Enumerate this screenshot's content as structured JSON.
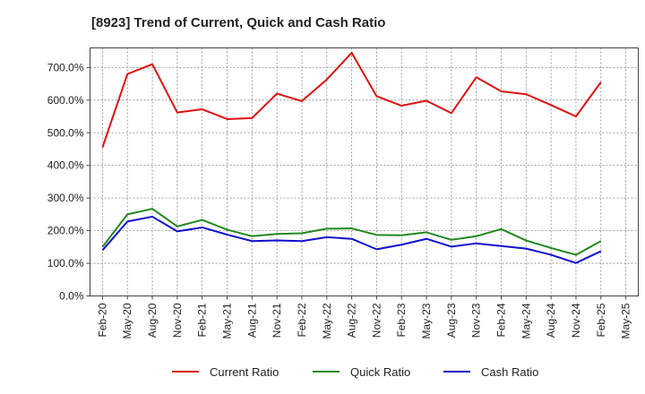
{
  "chart_data": {
    "type": "line",
    "title": "[8923]  Trend of Current, Quick and Cash Ratio",
    "xlabel": "",
    "ylabel": "",
    "ylim": [
      0,
      760
    ],
    "y_ticks": [
      0,
      100,
      200,
      300,
      400,
      500,
      600,
      700
    ],
    "y_tick_labels": [
      "0.0%",
      "100.0%",
      "200.0%",
      "300.0%",
      "400.0%",
      "500.0%",
      "600.0%",
      "700.0%"
    ],
    "categories": [
      "Feb-20",
      "May-20",
      "Aug-20",
      "Nov-20",
      "Feb-21",
      "May-21",
      "Aug-21",
      "Nov-21",
      "Feb-22",
      "May-22",
      "Aug-22",
      "Nov-22",
      "Feb-23",
      "May-23",
      "Aug-23",
      "Nov-23",
      "Feb-24",
      "May-24",
      "Aug-24",
      "Nov-24",
      "Feb-25",
      "May-25"
    ],
    "x_tick_labels": [
      "Feb-20",
      "May-20",
      "Aug-20",
      "Nov-20",
      "Feb-21",
      "May-21",
      "Aug-21",
      "Nov-21",
      "Feb-22",
      "May-22",
      "Aug-22",
      "Nov-22",
      "Feb-23",
      "May-23",
      "Aug-23",
      "Nov-23",
      "Feb-24",
      "May-24",
      "Aug-24",
      "Nov-24",
      "Feb-25",
      "May-25"
    ],
    "grid": true,
    "legend_position": "bottom",
    "series": [
      {
        "name": "Current Ratio",
        "color": "#dd1111",
        "values": [
          455,
          680,
          710,
          562,
          572,
          542,
          545,
          620,
          597,
          663,
          745,
          612,
          583,
          598,
          560,
          670,
          627,
          618,
          585,
          550,
          655,
          null
        ]
      },
      {
        "name": "Quick Ratio",
        "color": "#228822",
        "values": [
          150,
          250,
          267,
          213,
          233,
          203,
          183,
          190,
          192,
          206,
          207,
          187,
          186,
          195,
          172,
          183,
          205,
          170,
          147,
          126,
          168,
          null
        ]
      },
      {
        "name": "Cash Ratio",
        "color": "#1111cc",
        "values": [
          140,
          228,
          243,
          198,
          210,
          188,
          168,
          170,
          168,
          180,
          175,
          143,
          157,
          175,
          151,
          161,
          153,
          145,
          126,
          101,
          137,
          null
        ]
      }
    ]
  }
}
